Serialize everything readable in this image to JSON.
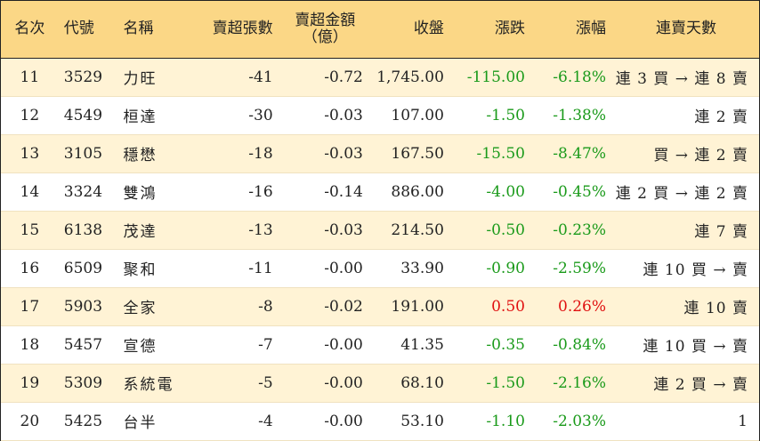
{
  "headers": {
    "rank": "名次",
    "code": "代號",
    "name": "名稱",
    "net_sell_lots": "賣超張數",
    "net_sell_amount_line1": "賣超金額",
    "net_sell_amount_line2": "（億）",
    "close": "收盤",
    "change": "漲跌",
    "pct": "漲幅",
    "days": "連賣天數"
  },
  "rows": [
    {
      "rank": "11",
      "code": "3529",
      "name": "力旺",
      "lots": "-41",
      "amount": "-0.72",
      "close": "1,745.00",
      "change": "-115.00",
      "pct": "-6.18%",
      "days": "連 3 買 → 連 8 賣",
      "dir": "neg"
    },
    {
      "rank": "12",
      "code": "4549",
      "name": "桓達",
      "lots": "-30",
      "amount": "-0.03",
      "close": "107.00",
      "change": "-1.50",
      "pct": "-1.38%",
      "days": "連 2 賣",
      "dir": "neg"
    },
    {
      "rank": "13",
      "code": "3105",
      "name": "穩懋",
      "lots": "-18",
      "amount": "-0.03",
      "close": "167.50",
      "change": "-15.50",
      "pct": "-8.47%",
      "days": "買 → 連 2 賣",
      "dir": "neg"
    },
    {
      "rank": "14",
      "code": "3324",
      "name": "雙鴻",
      "lots": "-16",
      "amount": "-0.14",
      "close": "886.00",
      "change": "-4.00",
      "pct": "-0.45%",
      "days": "連 2 買 → 連 2 賣",
      "dir": "neg"
    },
    {
      "rank": "15",
      "code": "6138",
      "name": "茂達",
      "lots": "-13",
      "amount": "-0.03",
      "close": "214.50",
      "change": "-0.50",
      "pct": "-0.23%",
      "days": "連 7 賣",
      "dir": "neg"
    },
    {
      "rank": "16",
      "code": "6509",
      "name": "聚和",
      "lots": "-11",
      "amount": "-0.00",
      "close": "33.90",
      "change": "-0.90",
      "pct": "-2.59%",
      "days": "連 10 買 → 賣",
      "dir": "neg"
    },
    {
      "rank": "17",
      "code": "5903",
      "name": "全家",
      "lots": "-8",
      "amount": "-0.02",
      "close": "191.00",
      "change": "0.50",
      "pct": "0.26%",
      "days": "連 10 賣",
      "dir": "pos"
    },
    {
      "rank": "18",
      "code": "5457",
      "name": "宣德",
      "lots": "-7",
      "amount": "-0.00",
      "close": "41.35",
      "change": "-0.35",
      "pct": "-0.84%",
      "days": "連 10 買 → 賣",
      "dir": "neg"
    },
    {
      "rank": "19",
      "code": "5309",
      "name": "系統電",
      "lots": "-5",
      "amount": "-0.00",
      "close": "68.10",
      "change": "-1.50",
      "pct": "-2.16%",
      "days": "連 2 買 → 賣",
      "dir": "neg"
    },
    {
      "rank": "20",
      "code": "5425",
      "name": "台半",
      "lots": "-4",
      "amount": "-0.00",
      "close": "53.10",
      "change": "-1.10",
      "pct": "-2.03%",
      "days": "1",
      "dir": "neg"
    }
  ],
  "colors": {
    "header_bg": "#fbd786",
    "odd_row_bg": "#fff3d5",
    "down": "#1a9a1a",
    "up": "#e01010"
  }
}
